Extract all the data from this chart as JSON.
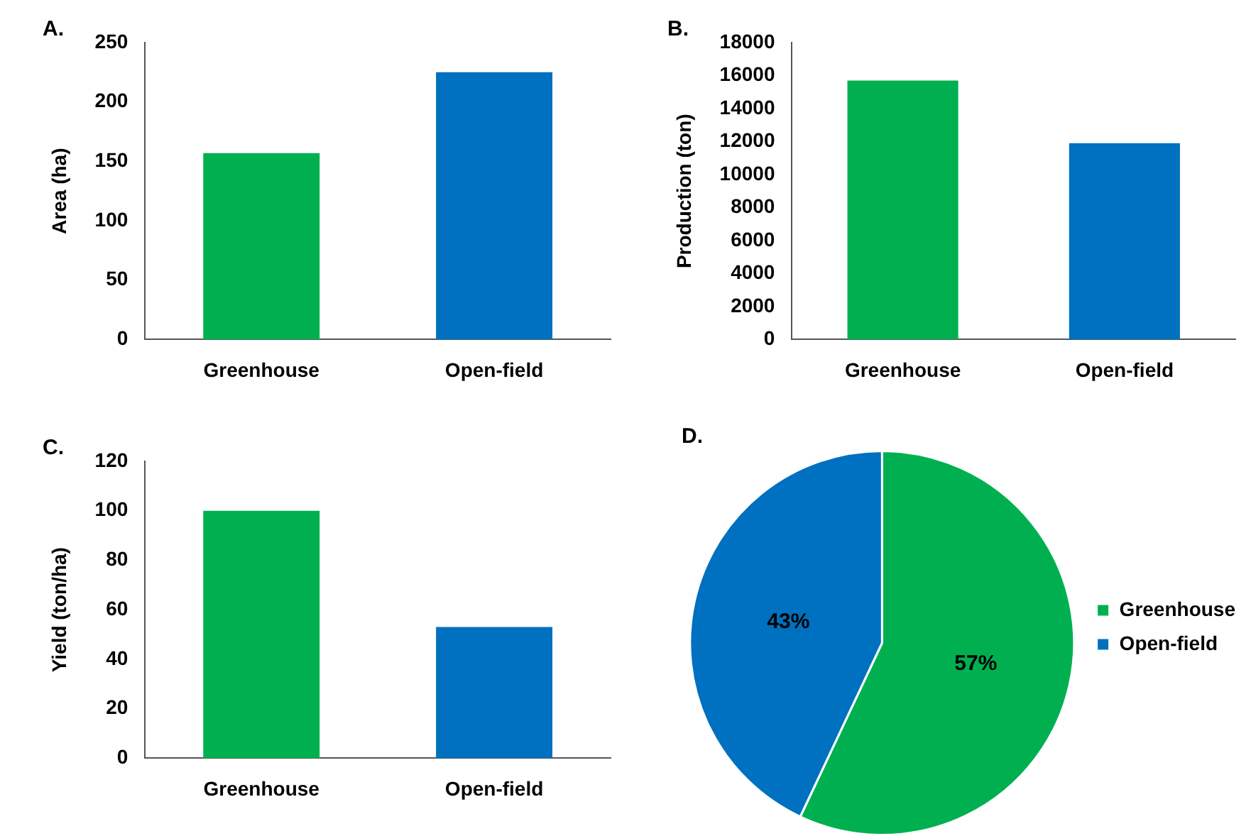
{
  "chart_data": [
    {
      "type": "bar",
      "title": "A.",
      "ylabel": "Area (ha)",
      "categories": [
        "Greenhouse",
        "Open-field"
      ],
      "values": [
        157,
        225
      ],
      "colors": [
        "#00b050",
        "#0070c0"
      ],
      "ylim": [
        0,
        250
      ],
      "yticks": [
        0,
        50,
        100,
        150,
        200,
        250
      ],
      "grid": false,
      "legend": false
    },
    {
      "type": "bar",
      "title": "B.",
      "ylabel": "Production (ton)",
      "categories": [
        "Greenhouse",
        "Open-field"
      ],
      "values": [
        15700,
        11900
      ],
      "colors": [
        "#00b050",
        "#0070c0"
      ],
      "ylim": [
        0,
        18000
      ],
      "yticks": [
        0,
        2000,
        4000,
        6000,
        8000,
        10000,
        12000,
        14000,
        16000,
        18000
      ],
      "grid": false,
      "legend": false
    },
    {
      "type": "bar",
      "title": "C.",
      "ylabel": "Yield (ton/ha)",
      "categories": [
        "Greenhouse",
        "Open-field"
      ],
      "values": [
        100,
        53
      ],
      "colors": [
        "#00b050",
        "#0070c0"
      ],
      "ylim": [
        0,
        120
      ],
      "yticks": [
        0,
        20,
        40,
        60,
        80,
        100,
        120
      ],
      "grid": false,
      "legend": false
    },
    {
      "type": "pie",
      "title": "D.",
      "categories": [
        "Greenhouse",
        "Open-field"
      ],
      "values": [
        57,
        43
      ],
      "value_labels": [
        "57%",
        "43%"
      ],
      "colors": [
        "#00b050",
        "#0070c0"
      ],
      "legend": "right"
    }
  ]
}
